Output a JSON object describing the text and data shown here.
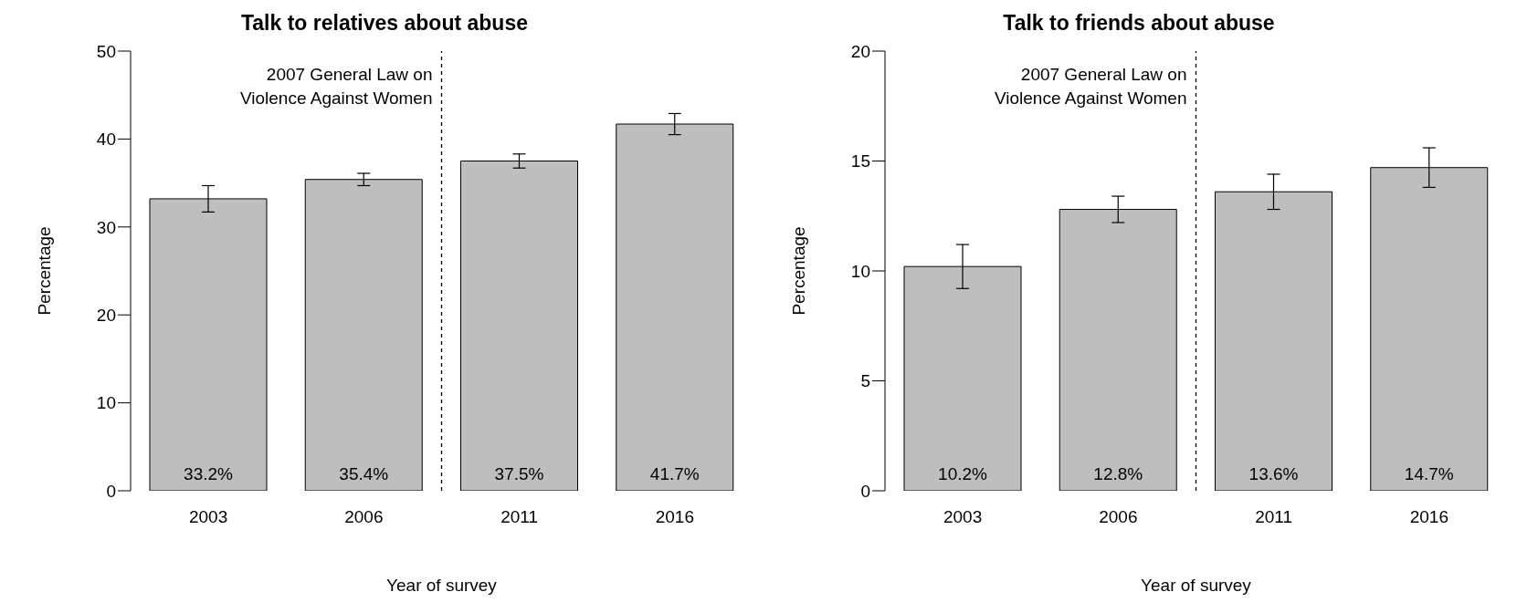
{
  "chart_data": [
    {
      "type": "bar",
      "title": "Talk to relatives about abuse",
      "xlabel": "Year of survey",
      "ylabel": "Percentage",
      "categories": [
        "2003",
        "2006",
        "2011",
        "2016"
      ],
      "values": [
        33.2,
        35.4,
        37.5,
        41.7
      ],
      "errors": [
        1.5,
        0.7,
        0.8,
        1.2
      ],
      "value_labels": [
        "33.2%",
        "35.4%",
        "37.5%",
        "41.7%"
      ],
      "color": "#bebebe",
      "ylim": [
        0,
        50
      ],
      "yticks": [
        0,
        10,
        20,
        30,
        40,
        50
      ],
      "grid": false,
      "legend": false,
      "annotations": [
        "2007 General Law on\nViolence Against Women"
      ]
    },
    {
      "type": "bar",
      "title": "Talk to friends about abuse",
      "xlabel": "Year of survey",
      "ylabel": "Percentage",
      "categories": [
        "2003",
        "2006",
        "2011",
        "2016"
      ],
      "values": [
        10.2,
        12.8,
        13.6,
        14.7
      ],
      "errors": [
        1.0,
        0.6,
        0.8,
        0.9
      ],
      "value_labels": [
        "10.2%",
        "12.8%",
        "13.6%",
        "14.7%"
      ],
      "color": "#bebebe",
      "ylim": [
        0,
        20
      ],
      "yticks": [
        0,
        5,
        10,
        15,
        20
      ],
      "grid": false,
      "legend": false,
      "annotations": [
        "2007 General Law on\nViolence Against Women"
      ]
    }
  ]
}
